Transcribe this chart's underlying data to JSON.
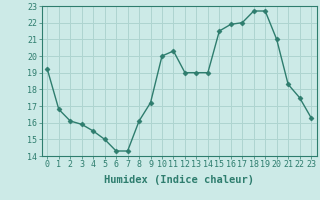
{
  "xlabel": "Humidex (Indice chaleur)",
  "x": [
    0,
    1,
    2,
    3,
    4,
    5,
    6,
    7,
    8,
    9,
    10,
    11,
    12,
    13,
    14,
    15,
    16,
    17,
    18,
    19,
    20,
    21,
    22,
    23
  ],
  "y": [
    19.2,
    16.8,
    16.1,
    15.9,
    15.5,
    15.0,
    14.3,
    14.3,
    16.1,
    17.2,
    20.0,
    20.3,
    19.0,
    19.0,
    19.0,
    21.5,
    21.9,
    22.0,
    22.7,
    22.7,
    21.0,
    18.3,
    17.5,
    16.3
  ],
  "ylim": [
    14,
    23
  ],
  "yticks": [
    14,
    15,
    16,
    17,
    18,
    19,
    20,
    21,
    22,
    23
  ],
  "xlim_min": -0.5,
  "xlim_max": 23.5,
  "xticks": [
    0,
    1,
    2,
    3,
    4,
    5,
    6,
    7,
    8,
    9,
    10,
    11,
    12,
    13,
    14,
    15,
    16,
    17,
    18,
    19,
    20,
    21,
    22,
    23
  ],
  "line_color": "#2e7d6e",
  "marker": "D",
  "marker_size": 2.5,
  "bg_color": "#cceae7",
  "grid_color": "#aed4d0",
  "text_color": "#2e7d6e",
  "tick_label_fontsize": 6.0,
  "xlabel_fontsize": 7.5
}
